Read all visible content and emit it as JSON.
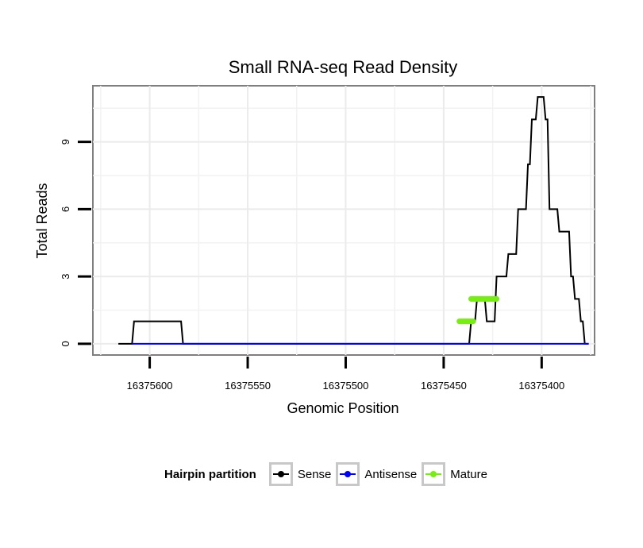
{
  "chart_data": {
    "type": "line",
    "title": "Small RNA-seq Read Density",
    "xlabel": "Genomic Position",
    "ylabel": "Total Reads",
    "x_reversed": true,
    "xlim": [
      16375629,
      16375373
    ],
    "ylim": [
      -0.5,
      11.5
    ],
    "x_ticks": [
      16375600,
      16375550,
      16375500,
      16375450,
      16375400
    ],
    "x_tick_labels": [
      "16375600",
      "16375550",
      "16375500",
      "16375450",
      "16375400"
    ],
    "y_ticks": [
      0,
      3,
      6,
      9
    ],
    "y_tick_labels": [
      "0",
      "3",
      "6",
      "9"
    ],
    "grid": true,
    "legend": {
      "title": "Hairpin partition",
      "position": "bottom",
      "entries": [
        {
          "name": "Sense",
          "color": "#000000"
        },
        {
          "name": "Antisense",
          "color": "#0000ff"
        },
        {
          "name": "Mature",
          "color": "#77ee11"
        }
      ]
    },
    "series": [
      {
        "name": "Sense",
        "color": "#000000",
        "x": [
          16375616,
          16375609,
          16375608,
          16375584,
          16375583,
          16375542,
          16375541,
          16375437,
          16375436,
          16375434,
          16375433,
          16375429,
          16375428,
          16375424,
          16375423,
          16375418,
          16375417,
          16375413,
          16375412,
          16375408,
          16375407,
          16375406,
          16375405,
          16375403,
          16375402,
          16375399,
          16375398,
          16375397,
          16375396,
          16375392,
          16375391,
          16375386,
          16375385,
          16375384,
          16375383,
          16375381,
          16375380,
          16375379,
          16375378,
          16375376
        ],
        "y": [
          0,
          0,
          1,
          1,
          0,
          0,
          0,
          0,
          1,
          1,
          2,
          2,
          1,
          1,
          3,
          3,
          4,
          4,
          6,
          6,
          8,
          8,
          10,
          10,
          11,
          11,
          10,
          10,
          6,
          6,
          5,
          5,
          3,
          3,
          2,
          2,
          1,
          1,
          0,
          0
        ]
      },
      {
        "name": "Antisense",
        "color": "#0000ff",
        "x": [
          16375609,
          16375376
        ],
        "y": [
          0,
          0
        ]
      },
      {
        "name": "Mature",
        "color": "#77ee11",
        "segments": [
          {
            "x": [
              16375442,
              16375435
            ],
            "y": [
              1,
              1
            ]
          },
          {
            "x": [
              16375436,
              16375423
            ],
            "y": [
              2,
              2
            ]
          }
        ]
      }
    ]
  }
}
